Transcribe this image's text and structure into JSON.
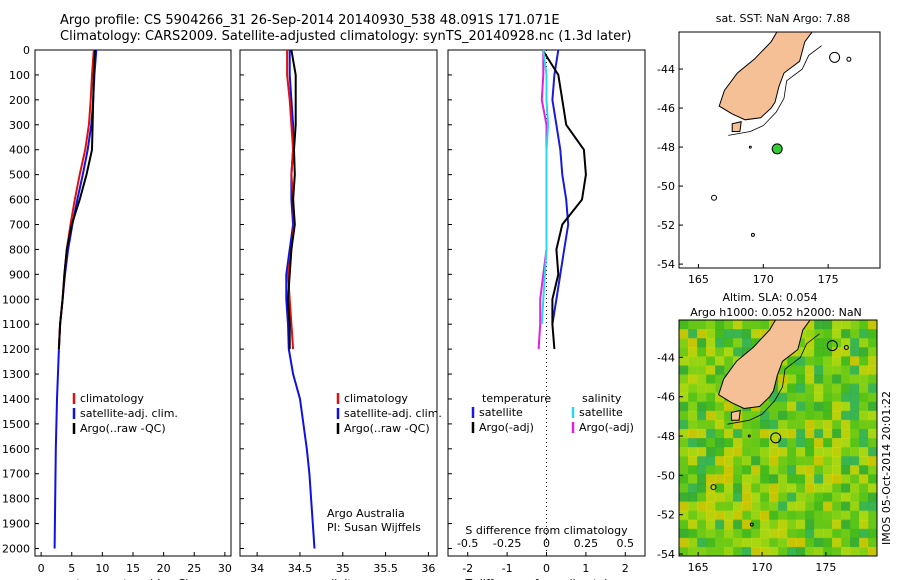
{
  "header": {
    "line1": "Argo profile: CS 5904266_31 26-Sep-2014 20140930_538 48.091S 171.071E",
    "line2": "Climatology: CARS2009. Satellite-adjusted climatology: synTS_20140928.nc (1.3d later)"
  },
  "depth_ticks": [
    0,
    100,
    200,
    300,
    400,
    500,
    600,
    700,
    800,
    900,
    1000,
    1100,
    1200,
    1300,
    1400,
    1500,
    1600,
    1700,
    1800,
    1900,
    2000
  ],
  "colors": {
    "climatology": "#e01010",
    "satellite": "#1010e0",
    "argo": "#000000",
    "sat_t": "#1a1ad8",
    "sat_s": "#28d8e8",
    "argo_s": "#e020e0",
    "land": "#f5c095",
    "float": "#33cc33"
  },
  "chart_data": [
    {
      "type": "line",
      "xlabel": "temperature (deg C)",
      "xlim": [
        -1,
        31
      ],
      "xticks": [
        0,
        5,
        10,
        15,
        20,
        25,
        30
      ],
      "ylim": [
        2030,
        0
      ],
      "legend": [
        "climatology",
        "satellite-adj. clim.",
        "Argo(..raw -QC)"
      ],
      "series": [
        {
          "name": "climatology",
          "depth": [
            0,
            100,
            200,
            300,
            400,
            500,
            600,
            700,
            800,
            900,
            1000,
            1100,
            1200
          ],
          "values": [
            8.6,
            8.3,
            8.1,
            7.8,
            7.2,
            6.3,
            5.5,
            4.8,
            4.2,
            3.8,
            3.5,
            3.1,
            2.9
          ]
        },
        {
          "name": "satellite-adj. clim.",
          "depth": [
            0,
            100,
            200,
            300,
            400,
            500,
            600,
            700,
            800,
            900,
            1000,
            1100,
            1200,
            1400,
            1600,
            1800,
            2000
          ],
          "values": [
            9.0,
            8.7,
            8.5,
            8.2,
            7.6,
            6.8,
            5.9,
            5.1,
            4.4,
            3.9,
            3.5,
            3.1,
            2.9,
            2.6,
            2.4,
            2.3,
            2.2
          ]
        },
        {
          "name": "Argo(..raw -QC)",
          "depth": [
            0,
            100,
            200,
            300,
            400,
            500,
            600,
            700,
            800,
            900,
            1000,
            1100,
            1200
          ],
          "values": [
            8.8,
            8.6,
            8.5,
            8.4,
            8.3,
            7.4,
            6.3,
            5.0,
            4.2,
            3.8,
            3.5,
            3.1,
            2.9
          ]
        }
      ]
    },
    {
      "type": "line",
      "xlabel": "salinity",
      "xlim": [
        33.8,
        36.1
      ],
      "xticks": [
        34,
        34.5,
        35,
        35.5,
        36
      ],
      "xticklabels": [
        "34",
        "34.5",
        "35",
        "35.5",
        "36"
      ],
      "ylim": [
        2030,
        0
      ],
      "legend": [
        "climatology",
        "satellite-adj. clim.",
        "Argo(..raw -QC)"
      ],
      "annotation": [
        "Argo Australia",
        "PI: Susan Wijffels"
      ],
      "series": [
        {
          "name": "climatology",
          "depth": [
            0,
            100,
            200,
            300,
            400,
            500,
            600,
            700,
            800,
            900,
            1000,
            1100,
            1200
          ],
          "values": [
            34.35,
            34.35,
            34.38,
            34.4,
            34.42,
            34.4,
            34.42,
            34.43,
            34.4,
            34.36,
            34.38,
            34.4,
            34.42
          ]
        },
        {
          "name": "satellite-adj. clim.",
          "depth": [
            0,
            100,
            200,
            300,
            400,
            500,
            600,
            700,
            800,
            900,
            1000,
            1100,
            1200,
            1300,
            1400,
            1500,
            1600,
            1700,
            1800,
            1900,
            2000
          ],
          "values": [
            34.38,
            34.38,
            34.4,
            34.42,
            34.42,
            34.4,
            34.4,
            34.42,
            34.38,
            34.34,
            34.34,
            34.36,
            34.37,
            34.42,
            34.5,
            34.54,
            34.58,
            34.61,
            34.63,
            34.65,
            34.67
          ]
        },
        {
          "name": "Argo(..raw -QC)",
          "depth": [
            0,
            100,
            200,
            300,
            400,
            500,
            600,
            700,
            800,
            900,
            1000,
            1100,
            1200
          ],
          "values": [
            34.4,
            34.45,
            34.45,
            34.45,
            34.43,
            34.44,
            34.42,
            34.44,
            34.4,
            34.38,
            34.36,
            34.38,
            34.38
          ]
        }
      ]
    },
    {
      "type": "line",
      "xlabel": "T difference from climatology",
      "xlabel_top": "S difference from climatology",
      "xlim": [
        -2.5,
        2.5
      ],
      "xticks": [
        -2,
        -1,
        0,
        1,
        2
      ],
      "xticks_s": [
        -0.5,
        -0.25,
        0,
        0.25,
        0.5
      ],
      "xticklabels_s": [
        "-0.5",
        "-0.25",
        "0",
        "0.25",
        "0.5"
      ],
      "ylim": [
        2030,
        0
      ],
      "legend_titles": [
        "temperature",
        "salinity"
      ],
      "legend": [
        "satellite",
        "Argo(-adj)",
        "satellite",
        "Argo(-adj)"
      ],
      "series": [
        {
          "name": "satellite",
          "depth": [
            0,
            100,
            200,
            300,
            400,
            500,
            600,
            700,
            800,
            900,
            1000,
            1100
          ],
          "values": [
            0.3,
            0.2,
            0.15,
            0.25,
            0.35,
            0.4,
            0.5,
            0.55,
            0.45,
            0.35,
            0.25,
            0.15
          ]
        },
        {
          "name": "Argo(-adj)",
          "depth": [
            0,
            100,
            200,
            300,
            400,
            500,
            600,
            700,
            800,
            900,
            1000,
            1100,
            1200
          ],
          "values": [
            -0.1,
            0.3,
            0.4,
            0.5,
            0.95,
            1.0,
            0.9,
            0.4,
            0.25,
            0.3,
            0.15,
            0.15,
            0.2
          ]
        },
        {
          "name": "satellite",
          "depth": [
            0,
            100,
            200,
            300,
            400,
            500,
            600,
            700,
            800,
            900,
            1000,
            1100
          ],
          "values": [
            -0.02,
            0.0,
            0.0,
            0.01,
            0.0,
            0.0,
            0.0,
            0.0,
            0.0,
            -0.01,
            -0.02,
            -0.03
          ]
        },
        {
          "name": "Argo(-adj)",
          "depth": [
            0,
            100,
            200,
            300,
            400,
            500,
            600,
            700,
            800,
            900,
            1000,
            1100,
            1200
          ],
          "values": [
            -0.02,
            -0.02,
            -0.03,
            0.0,
            0.0,
            0.0,
            0.0,
            0.0,
            0.0,
            -0.02,
            -0.04,
            -0.04,
            -0.05
          ]
        }
      ]
    },
    {
      "type": "scatter",
      "title": "sat. SST: NaN Argo: 7.88",
      "xlim": [
        163.5,
        179
      ],
      "xticks": [
        165,
        170,
        175
      ],
      "ylim": [
        -54.2,
        -42.1
      ],
      "yticks": [
        -44,
        -46,
        -48,
        -50,
        -52,
        -54
      ],
      "float_position": {
        "lon": 171.071,
        "lat": -48.091
      }
    },
    {
      "type": "heatmap",
      "title_line1": "Altim. SLA: 0.054",
      "title_line2": "Argo h1000: 0.052 h2000: NaN",
      "xlim": [
        163.5,
        179
      ],
      "xticks": [
        165,
        170,
        175
      ],
      "ylim": [
        -54.1,
        -42.1
      ],
      "yticks": [
        -44,
        -46,
        -48,
        -50,
        -52,
        -54
      ],
      "float_position": {
        "lon": 171.071,
        "lat": -48.091
      }
    }
  ],
  "timestamp": "IMOS 05-Oct-2014 20:01:22"
}
